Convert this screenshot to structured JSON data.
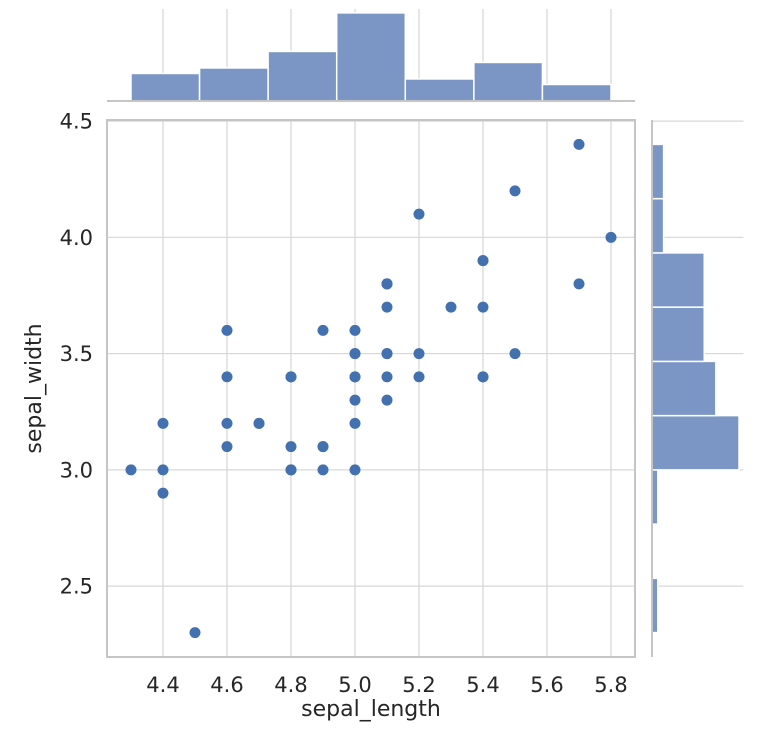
{
  "chart_data": {
    "type": "scatter",
    "subtype": "jointplot_scatter_with_marginal_histograms",
    "title": "",
    "xlabel": "sepal_length",
    "ylabel": "sepal_width",
    "x_ticks": [
      "4.4",
      "4.6",
      "4.8",
      "5.0",
      "5.2",
      "5.4",
      "5.6",
      "5.8"
    ],
    "x_tick_values": [
      4.4,
      4.6,
      4.8,
      5.0,
      5.2,
      5.4,
      5.6,
      5.8
    ],
    "y_ticks": [
      "4.5",
      "4.0",
      "3.5",
      "3.0",
      "2.5"
    ],
    "y_tick_values": [
      4.5,
      4.0,
      3.5,
      3.0,
      2.5
    ],
    "xlim": [
      4.225,
      5.875
    ],
    "ylim": [
      2.195,
      4.505
    ],
    "grid": true,
    "points": [
      [
        5.1,
        3.5
      ],
      [
        4.9,
        3.0
      ],
      [
        4.7,
        3.2
      ],
      [
        4.6,
        3.1
      ],
      [
        5.0,
        3.6
      ],
      [
        5.4,
        3.9
      ],
      [
        4.6,
        3.4
      ],
      [
        5.0,
        3.4
      ],
      [
        4.4,
        2.9
      ],
      [
        4.9,
        3.1
      ],
      [
        5.4,
        3.7
      ],
      [
        4.8,
        3.4
      ],
      [
        4.8,
        3.0
      ],
      [
        4.3,
        3.0
      ],
      [
        5.8,
        4.0
      ],
      [
        5.7,
        4.4
      ],
      [
        5.4,
        3.9
      ],
      [
        5.1,
        3.5
      ],
      [
        5.7,
        3.8
      ],
      [
        5.1,
        3.8
      ],
      [
        5.4,
        3.4
      ],
      [
        5.1,
        3.7
      ],
      [
        4.6,
        3.6
      ],
      [
        5.1,
        3.3
      ],
      [
        4.8,
        3.4
      ],
      [
        5.0,
        3.0
      ],
      [
        5.0,
        3.4
      ],
      [
        5.2,
        3.5
      ],
      [
        5.2,
        3.4
      ],
      [
        4.7,
        3.2
      ],
      [
        4.8,
        3.1
      ],
      [
        5.4,
        3.4
      ],
      [
        5.2,
        4.1
      ],
      [
        5.5,
        4.2
      ],
      [
        4.9,
        3.1
      ],
      [
        5.0,
        3.2
      ],
      [
        5.5,
        3.5
      ],
      [
        4.9,
        3.6
      ],
      [
        4.4,
        3.0
      ],
      [
        5.1,
        3.4
      ],
      [
        5.0,
        3.5
      ],
      [
        4.5,
        2.3
      ],
      [
        4.4,
        3.2
      ],
      [
        5.0,
        3.5
      ],
      [
        5.1,
        3.8
      ],
      [
        4.8,
        3.0
      ],
      [
        5.1,
        3.8
      ],
      [
        4.6,
        3.2
      ],
      [
        5.3,
        3.7
      ],
      [
        5.0,
        3.3
      ]
    ],
    "top_histogram": {
      "variable": "sepal_length",
      "bin_start": 4.3,
      "bin_width": 0.2142857,
      "counts": [
        5,
        6,
        9,
        16,
        4,
        7,
        3
      ],
      "axis_max": 16.8
    },
    "right_histogram": {
      "variable": "sepal_width",
      "bin_start": 2.3,
      "bin_width": 0.2333333,
      "counts_bottom_to_top": [
        1,
        0,
        1,
        15,
        11,
        9,
        9,
        2,
        2
      ],
      "axis_max": 15.75
    },
    "colors": {
      "bar_fill": "#7b96c4",
      "bar_edge": "#ffffff",
      "dot": "#4371af",
      "grid": "#d9d9d9",
      "spine": "#c5c5c5",
      "text": "#262626",
      "background": "#ffffff"
    }
  }
}
